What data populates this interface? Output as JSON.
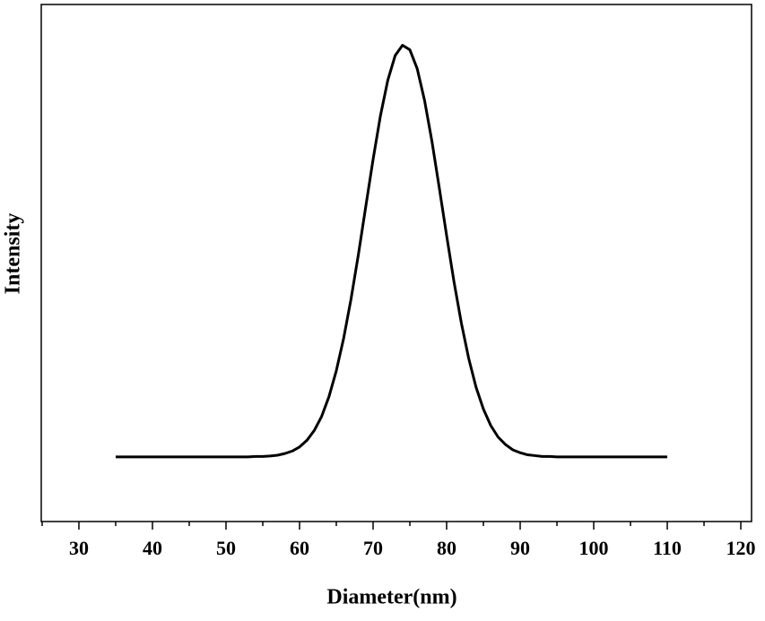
{
  "chart_data": {
    "type": "line",
    "xlabel": "Diameter(nm)",
    "ylabel": "Intensity",
    "x": [
      35,
      36,
      37,
      38,
      39,
      40,
      41,
      42,
      43,
      44,
      45,
      46,
      47,
      48,
      49,
      50,
      51,
      52,
      53,
      54,
      55,
      56,
      57,
      58,
      59,
      60,
      61,
      62,
      63,
      64,
      65,
      66,
      67,
      68,
      69,
      70,
      71,
      72,
      73,
      74,
      75,
      76,
      77,
      78,
      79,
      80,
      81,
      82,
      83,
      84,
      85,
      86,
      87,
      88,
      89,
      90,
      91,
      92,
      93,
      94,
      95,
      96,
      97,
      98,
      99,
      100,
      101,
      102,
      103,
      104,
      105,
      106,
      107,
      108,
      109,
      110
    ],
    "series": [
      {
        "color": "#000000",
        "values": [
          0,
          0,
          0,
          0,
          0,
          0,
          0,
          0,
          0,
          0,
          0,
          0,
          0,
          0,
          0,
          0,
          0,
          0,
          0,
          0.001,
          0.001,
          0.002,
          0.004,
          0.008,
          0.014,
          0.024,
          0.04,
          0.064,
          0.098,
          0.146,
          0.209,
          0.288,
          0.383,
          0.491,
          0.607,
          0.722,
          0.828,
          0.914,
          0.974,
          0.999,
          0.988,
          0.942,
          0.865,
          0.766,
          0.653,
          0.537,
          0.425,
          0.325,
          0.239,
          0.169,
          0.116,
          0.076,
          0.048,
          0.03,
          0.017,
          0.01,
          0.005,
          0.003,
          0.001,
          0.001,
          0,
          0,
          0,
          0,
          0,
          0,
          0,
          0,
          0,
          0,
          0,
          0,
          0,
          0,
          0,
          0
        ]
      }
    ],
    "xlim": [
      24.88,
      121.46
    ],
    "ylim": [
      -0.157,
      1.098
    ],
    "xticks": [
      30,
      40,
      50,
      60,
      70,
      80,
      90,
      100,
      110,
      120
    ],
    "xminorticks": [
      25,
      35,
      45,
      55,
      65,
      75,
      85,
      95,
      105,
      115
    ]
  }
}
